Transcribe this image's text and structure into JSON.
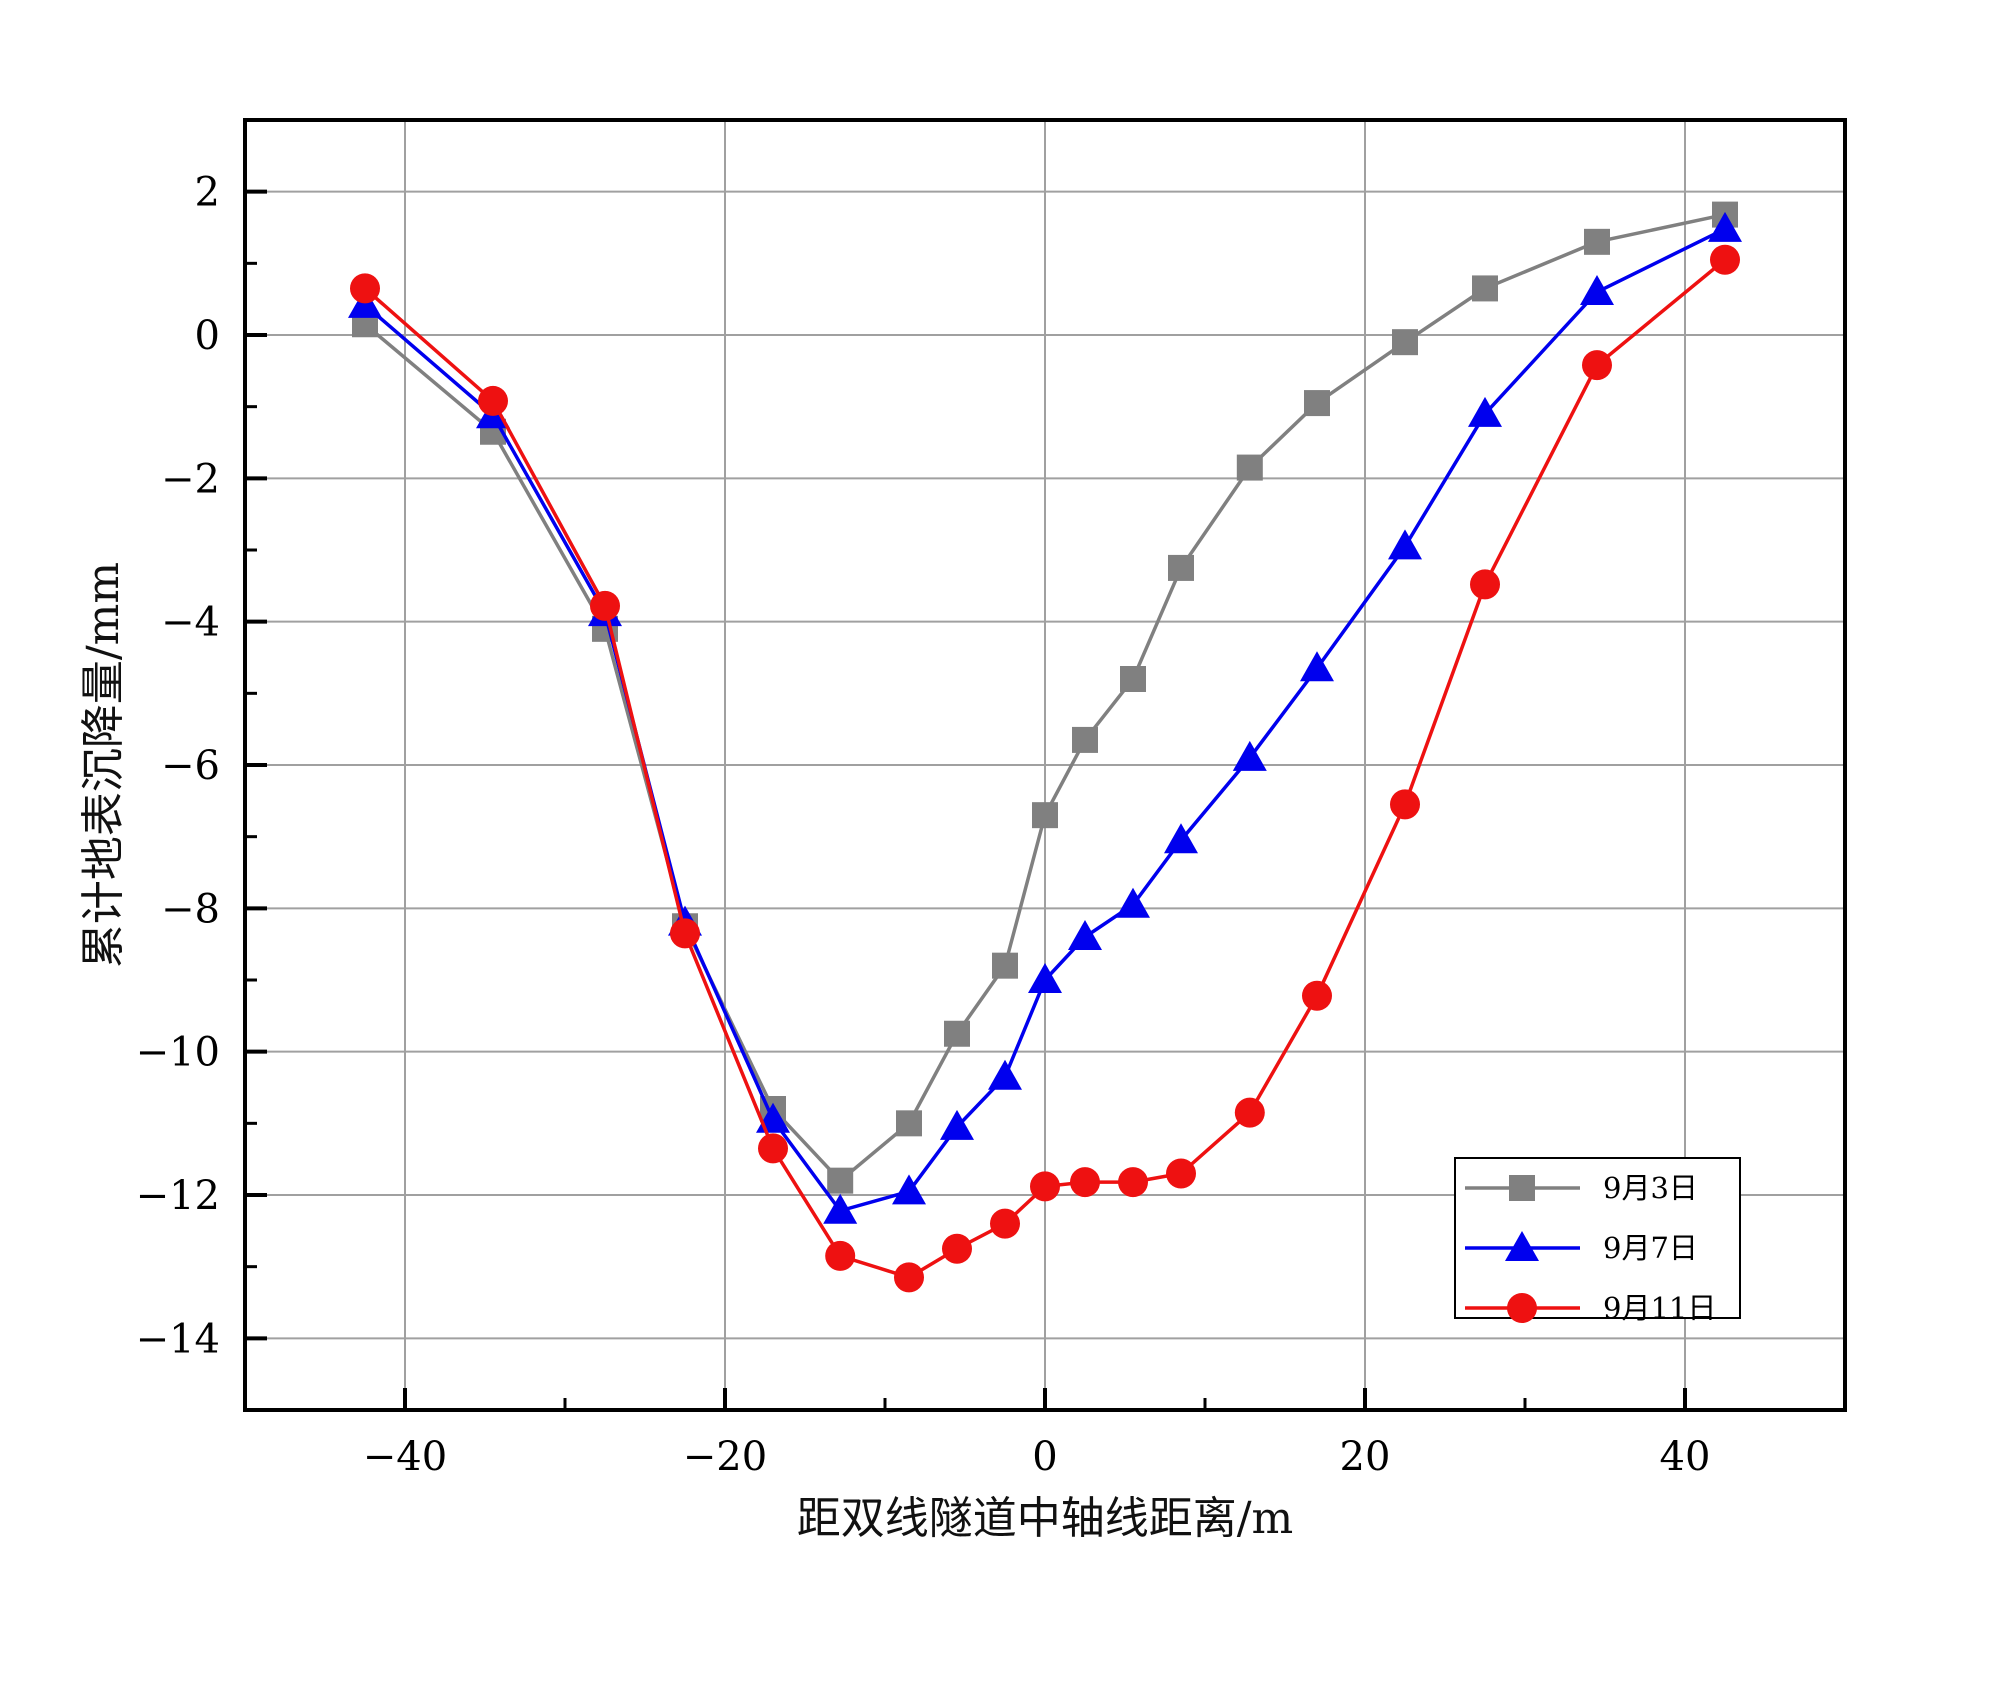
{
  "chart_data": {
    "type": "line",
    "title": "",
    "xlabel": "距双线隧道中轴线距离/m",
    "ylabel": "累计地表沉降量/mm",
    "xlim": [
      -50,
      50
    ],
    "ylim": [
      -15,
      3
    ],
    "x_ticks": [
      -40,
      -20,
      0,
      20,
      40
    ],
    "y_ticks": [
      2,
      0,
      -2,
      -4,
      -6,
      -8,
      -10,
      -12,
      -14
    ],
    "x_tick_labels": [
      "−40",
      "−20",
      "0",
      "20",
      "40"
    ],
    "y_tick_labels": [
      "2",
      "0",
      "−2",
      "−4",
      "−6",
      "−8",
      "−10",
      "−12",
      "−14"
    ],
    "grid": true,
    "legend_position": "bottom-right",
    "series": [
      {
        "name": "9月3日",
        "color": "#808080",
        "marker": "square",
        "x": [
          -42.5,
          -34.5,
          -27.5,
          -22.5,
          -17,
          -12.8,
          -8.5,
          -5.5,
          -2.5,
          0,
          2.5,
          5.5,
          8.5,
          12.8,
          17,
          22.5,
          27.5,
          34.5,
          42.5
        ],
        "y": [
          0.15,
          -1.35,
          -4.1,
          -8.25,
          -10.8,
          -11.8,
          -11.0,
          -9.75,
          -8.8,
          -6.7,
          -5.65,
          -4.8,
          -3.25,
          -1.85,
          -0.95,
          -0.1,
          0.65,
          1.3,
          1.68
        ]
      },
      {
        "name": "9月7日",
        "color": "#0000ee",
        "marker": "triangle",
        "x": [
          -42.5,
          -34.5,
          -27.5,
          -22.5,
          -17,
          -12.8,
          -8.5,
          -5.5,
          -2.5,
          0,
          2.5,
          5.5,
          8.5,
          12.8,
          17,
          22.5,
          27.5,
          34.5,
          42.5
        ],
        "y": [
          0.42,
          -1.12,
          -3.88,
          -8.2,
          -10.95,
          -12.22,
          -11.95,
          -11.05,
          -10.35,
          -9.0,
          -8.4,
          -7.95,
          -7.05,
          -5.9,
          -4.65,
          -2.95,
          -1.1,
          0.6,
          1.48
        ]
      },
      {
        "name": "9月11日",
        "color": "#ee1111",
        "marker": "circle",
        "x": [
          -42.5,
          -34.5,
          -27.5,
          -22.5,
          -17,
          -12.8,
          -8.5,
          -5.5,
          -2.5,
          0,
          2.5,
          5.5,
          8.5,
          12.8,
          17,
          22.5,
          27.5,
          34.5,
          42.5
        ],
        "y": [
          0.65,
          -0.92,
          -3.78,
          -8.35,
          -11.35,
          -12.85,
          -13.15,
          -12.75,
          -12.4,
          -11.88,
          -11.82,
          -11.82,
          -11.7,
          -10.85,
          -9.22,
          -6.55,
          -3.48,
          -0.42,
          1.05
        ]
      }
    ]
  }
}
